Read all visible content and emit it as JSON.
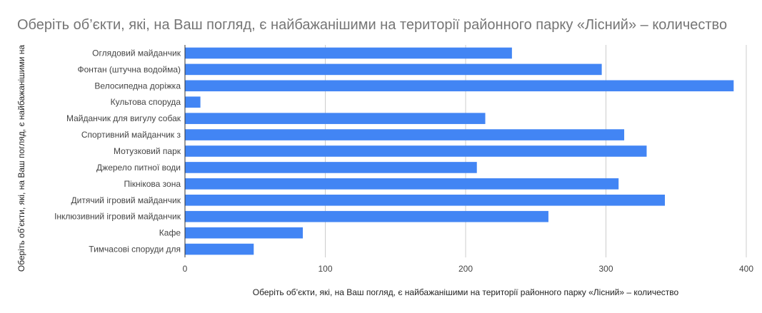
{
  "chart_data": {
    "type": "bar",
    "orientation": "horizontal",
    "title": "Оберіть об’єкти, які, на Ваш погляд, є найбажанішими на території районного парку «Лісний» – количество",
    "xlabel": "Оберіть об’єкти, які, на Ваш погляд, є найбажанішими на території районного парку «Лісний» – количество",
    "ylabel": "Оберіть об’єкти, які, на Ваш погляд, є найбажанішими на",
    "categories": [
      "Оглядовий майданчик",
      "Фонтан (штучна водойма)",
      "Велосипедна доріжка",
      "Культова споруда",
      "Майданчик для вигулу собак",
      "Спортивний майданчик з",
      "Мотузковий парк",
      "Джерело питної води",
      "Пікнікова зона",
      "Дитячий ігровий майданчик",
      "Інклюзивний ігровий майданчик",
      "Кафе",
      "Тимчасові споруди для"
    ],
    "values": [
      233,
      297,
      391,
      11,
      214,
      313,
      329,
      208,
      309,
      342,
      259,
      84,
      49
    ],
    "xlim": [
      0,
      400
    ],
    "xticks": [
      0,
      100,
      200,
      300,
      400
    ],
    "grid": true,
    "legend": "none",
    "bar_color": "#4285f4"
  }
}
